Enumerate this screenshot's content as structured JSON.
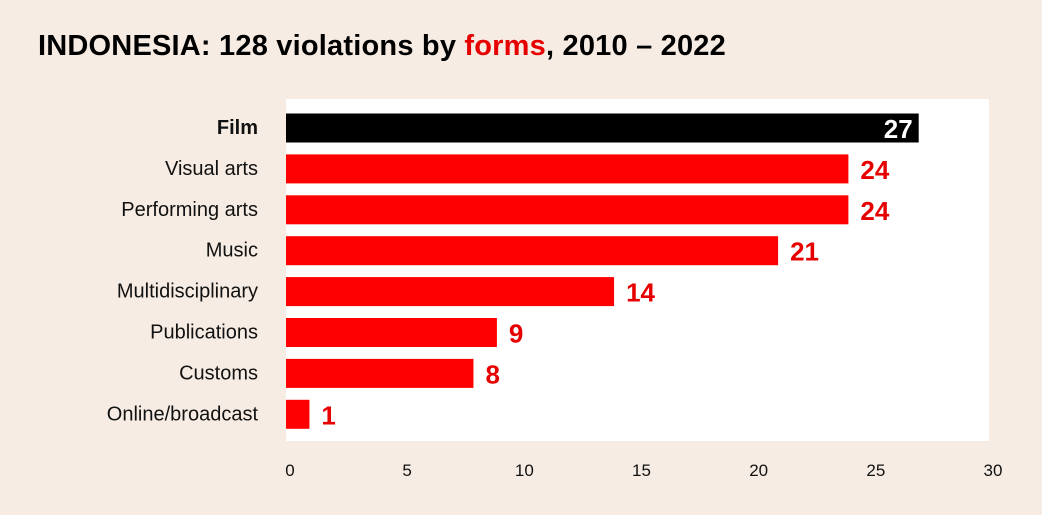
{
  "title": {
    "prefix": "INDONESIA: 128 violations by ",
    "highlight": "forms",
    "suffix": ", 2010 – 2022"
  },
  "colors": {
    "highlight_bar": "#000000",
    "bar": "#ff0000",
    "highlight_text": "#e60000",
    "background": "#f6ece3",
    "plot_background": "#ffffff"
  },
  "chart_data": {
    "type": "bar",
    "orientation": "horizontal",
    "categories": [
      "Film",
      "Visual arts",
      "Performing arts",
      "Music",
      "Multidisciplinary",
      "Publications",
      "Customs",
      "Online/broadcast"
    ],
    "values": [
      27,
      24,
      24,
      21,
      14,
      9,
      8,
      1
    ],
    "highlighted_category": "Film",
    "xlim": [
      0,
      30
    ],
    "xticks": [
      0,
      5,
      10,
      15,
      20,
      25,
      30
    ],
    "grid": false,
    "data_labels": true
  }
}
